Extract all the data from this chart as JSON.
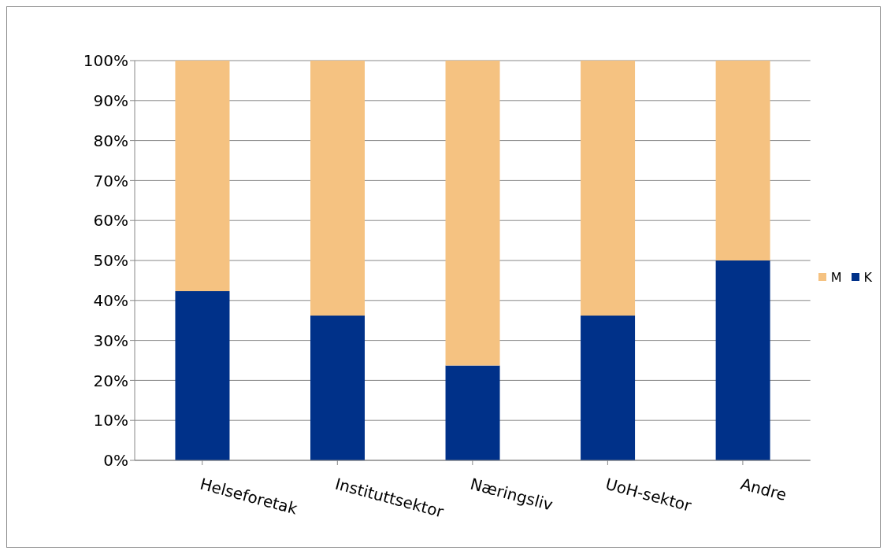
{
  "chart_data": {
    "type": "bar",
    "stacked": true,
    "categories": [
      "Helseforetak",
      "Instituttsektor",
      "Næringsliv",
      "UoH-sektor",
      "Andre"
    ],
    "series": [
      {
        "name": "K",
        "color": "#003189",
        "values": [
          42.3,
          36.2,
          23.7,
          36.2,
          50
        ]
      },
      {
        "name": "M",
        "color": "#f5c281",
        "values": [
          57.7,
          63.8,
          76.3,
          63.8,
          50
        ]
      }
    ],
    "ylim": [
      0,
      100
    ],
    "yticks": [
      {
        "value": 0,
        "label": "0%"
      },
      {
        "value": 10,
        "label": "10%"
      },
      {
        "value": 20,
        "label": "20%"
      },
      {
        "value": 30,
        "label": "30%"
      },
      {
        "value": 40,
        "label": "40%"
      },
      {
        "value": 50,
        "label": "50%"
      },
      {
        "value": 60,
        "label": "60%"
      },
      {
        "value": 70,
        "label": "70%"
      },
      {
        "value": 80,
        "label": "80%"
      },
      {
        "value": 90,
        "label": "90%"
      },
      {
        "value": 100,
        "label": "100%"
      }
    ],
    "grid": "y",
    "legend": "right"
  }
}
